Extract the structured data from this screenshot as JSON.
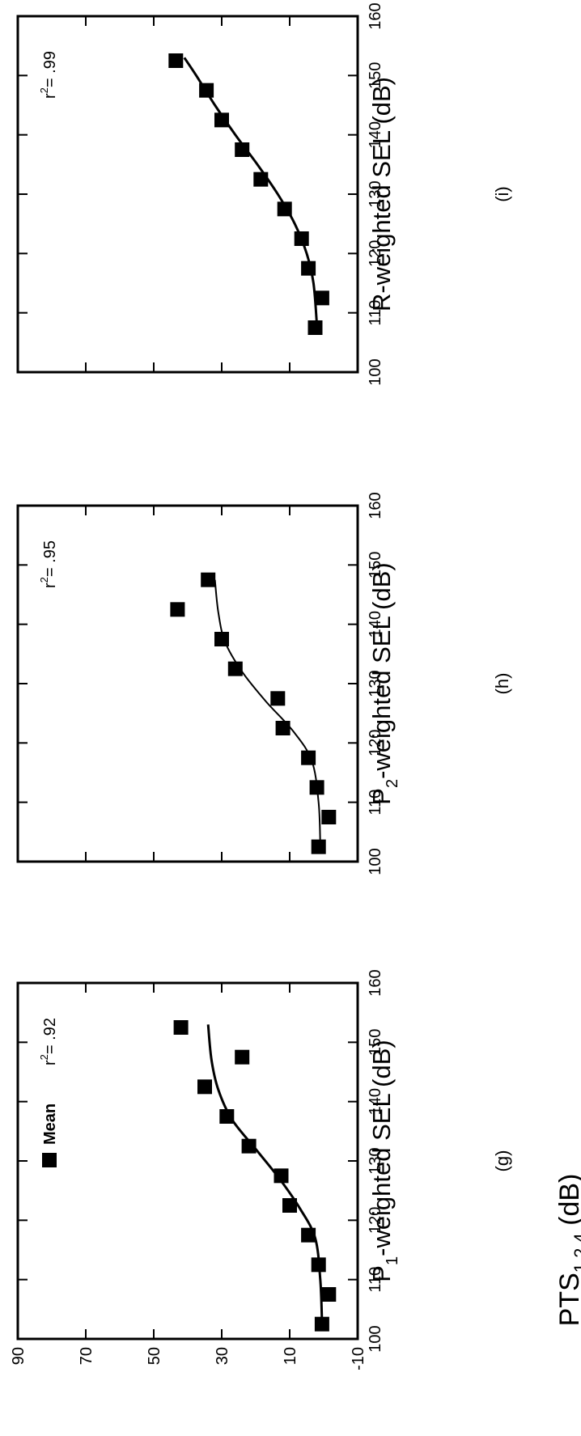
{
  "figure": {
    "y_axis_title_main": "PTS",
    "y_axis_title_sub": "1,2,4",
    "y_axis_title_unit": " (dB)",
    "legend_label": "Mean",
    "legend_marker": "filled-square",
    "marker_color": "#000000",
    "line_color": "#000000"
  },
  "chart_data": [
    {
      "type": "scatter",
      "panel_label": "(g)",
      "xlabel_main": "P",
      "xlabel_sub": "1",
      "xlabel_rest": "-weighted SEL (dB)",
      "r2_label": "= .92",
      "xlim": [
        100,
        160
      ],
      "ylim": [
        -10,
        90
      ],
      "xticks": [
        100,
        110,
        120,
        130,
        140,
        150,
        160
      ],
      "yticks": [
        90,
        70,
        50,
        30,
        10,
        -10
      ],
      "series": [
        {
          "points": [
            {
              "x": 102.5,
              "y": 0.5
            },
            {
              "x": 107.5,
              "y": -1.5
            },
            {
              "x": 112.5,
              "y": 1.5
            },
            {
              "x": 117.5,
              "y": 4.5
            },
            {
              "x": 122.5,
              "y": 10
            },
            {
              "x": 127.5,
              "y": 12.5
            },
            {
              "x": 132.5,
              "y": 22
            },
            {
              "x": 137.5,
              "y": 28.5
            },
            {
              "x": 142.5,
              "y": 35
            },
            {
              "x": 147.5,
              "y": 24
            },
            {
              "x": 152.5,
              "y": 42
            }
          ]
        }
      ],
      "fit_curve": [
        {
          "x": 103,
          "y": 0.5
        },
        {
          "x": 110,
          "y": 1
        },
        {
          "x": 117,
          "y": 2.5
        },
        {
          "x": 122,
          "y": 7
        },
        {
          "x": 127,
          "y": 13
        },
        {
          "x": 132,
          "y": 20
        },
        {
          "x": 137,
          "y": 27
        },
        {
          "x": 142,
          "y": 31
        },
        {
          "x": 147,
          "y": 33
        },
        {
          "x": 153,
          "y": 34
        }
      ]
    },
    {
      "type": "scatter",
      "panel_label": "(h)",
      "xlabel_main": "P",
      "xlabel_sub": "2",
      "xlabel_rest": "-weighted SEL (dB)",
      "r2_label": "= .95",
      "xlim": [
        100,
        160
      ],
      "ylim": [
        -10,
        90
      ],
      "xticks": [
        100,
        110,
        120,
        130,
        140,
        150,
        160
      ],
      "yticks": [
        90,
        70,
        50,
        30,
        10,
        -10
      ],
      "series": [
        {
          "points": [
            {
              "x": 102.5,
              "y": 1.5
            },
            {
              "x": 107.5,
              "y": -1.5
            },
            {
              "x": 112.5,
              "y": 2
            },
            {
              "x": 117.5,
              "y": 4.5
            },
            {
              "x": 122.5,
              "y": 12
            },
            {
              "x": 127.5,
              "y": 13.5
            },
            {
              "x": 132.5,
              "y": 26
            },
            {
              "x": 137.5,
              "y": 30
            },
            {
              "x": 142.5,
              "y": 43
            },
            {
              "x": 147.5,
              "y": 34
            }
          ]
        }
      ],
      "fit_curve": [
        {
          "x": 103,
          "y": 1
        },
        {
          "x": 110,
          "y": 1.5
        },
        {
          "x": 117,
          "y": 3.5
        },
        {
          "x": 122,
          "y": 9
        },
        {
          "x": 127,
          "y": 17
        },
        {
          "x": 132,
          "y": 24
        },
        {
          "x": 137,
          "y": 29
        },
        {
          "x": 142,
          "y": 31
        },
        {
          "x": 147.5,
          "y": 32
        }
      ]
    },
    {
      "type": "scatter",
      "panel_label": "(i)",
      "xlabel_main": "R-weighted SEL (dB)",
      "xlabel_sub": "",
      "xlabel_rest": "",
      "r2_label": "= .99",
      "xlim": [
        100,
        160
      ],
      "ylim": [
        -10,
        90
      ],
      "xticks": [
        100,
        110,
        120,
        130,
        140,
        150,
        160
      ],
      "yticks": [
        90,
        70,
        50,
        30,
        10,
        -10
      ],
      "series": [
        {
          "points": [
            {
              "x": 107.5,
              "y": 2.5
            },
            {
              "x": 112.5,
              "y": 0.5
            },
            {
              "x": 117.5,
              "y": 4.5
            },
            {
              "x": 122.5,
              "y": 6.5
            },
            {
              "x": 127.5,
              "y": 11.5
            },
            {
              "x": 132.5,
              "y": 18.5
            },
            {
              "x": 137.5,
              "y": 24
            },
            {
              "x": 142.5,
              "y": 30
            },
            {
              "x": 147.5,
              "y": 34.5
            },
            {
              "x": 152.5,
              "y": 43.5
            }
          ]
        }
      ],
      "fit_curve": [
        {
          "x": 108,
          "y": 2
        },
        {
          "x": 115,
          "y": 3
        },
        {
          "x": 120,
          "y": 5
        },
        {
          "x": 125,
          "y": 8.5
        },
        {
          "x": 130,
          "y": 13.5
        },
        {
          "x": 135,
          "y": 19.5
        },
        {
          "x": 140,
          "y": 26
        },
        {
          "x": 145,
          "y": 32
        },
        {
          "x": 150,
          "y": 37.5
        },
        {
          "x": 153,
          "y": 41
        }
      ]
    }
  ]
}
